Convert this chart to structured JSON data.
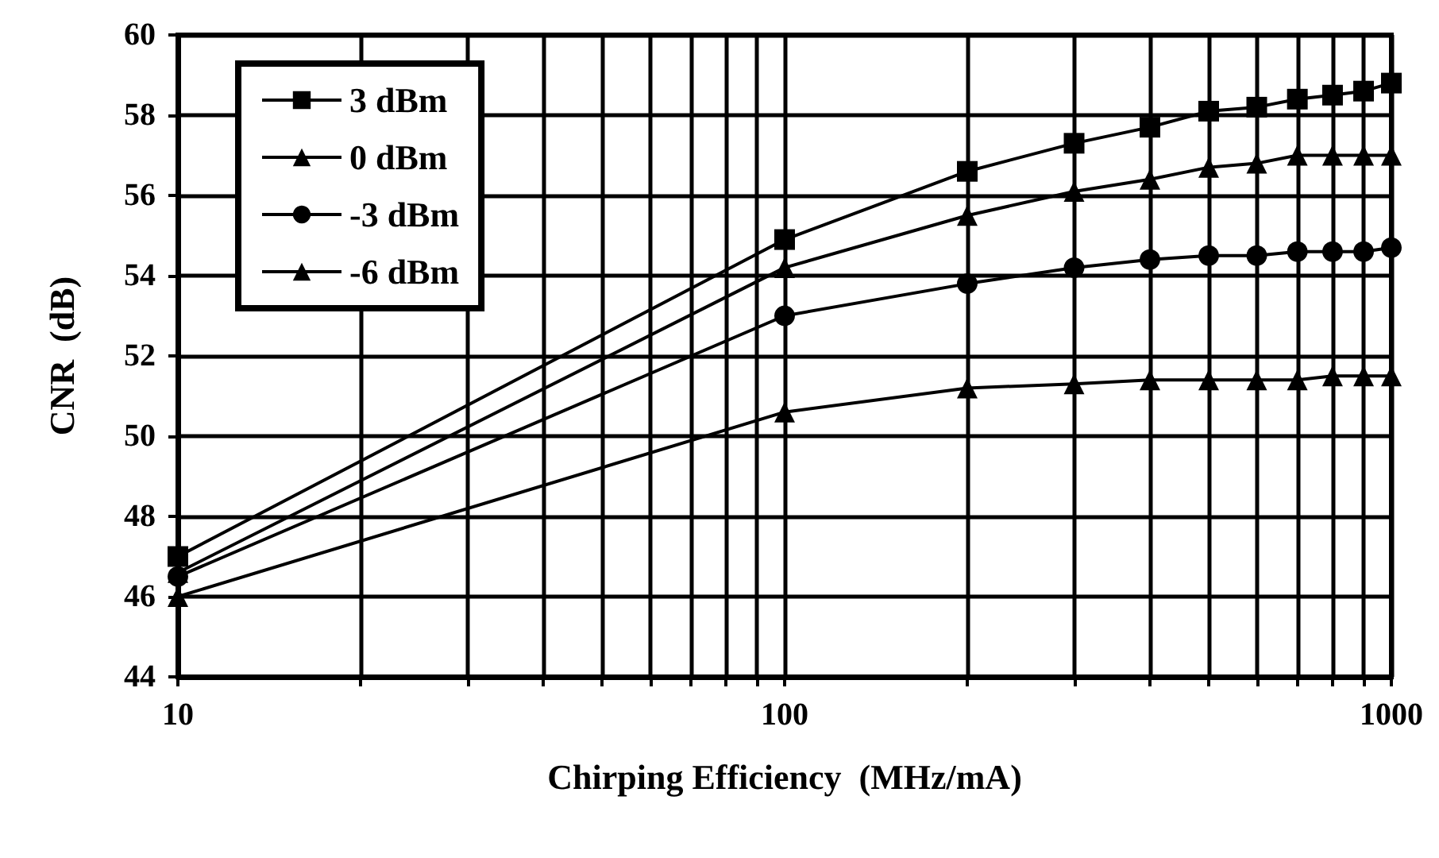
{
  "chart_data": {
    "type": "line",
    "xlabel": "Chirping Efficiency  (MHz/mA)",
    "ylabel": "CNR  (dB)",
    "x": [
      10,
      100,
      200,
      300,
      400,
      500,
      600,
      700,
      800,
      900,
      1000
    ],
    "series": [
      {
        "name": "3 dBm",
        "color": "#000000",
        "marker": "square",
        "values": [
          47.0,
          54.9,
          56.6,
          57.3,
          57.7,
          58.1,
          58.2,
          58.4,
          58.5,
          58.6,
          58.8
        ]
      },
      {
        "name": "0 dBm",
        "color": "#000000",
        "marker": "triangle",
        "values": [
          46.6,
          54.2,
          55.5,
          56.1,
          56.4,
          56.7,
          56.8,
          57.0,
          57.0,
          57.0,
          57.0
        ]
      },
      {
        "name": "-3 dBm",
        "color": "#000000",
        "marker": "circle",
        "values": [
          46.5,
          53.0,
          53.8,
          54.2,
          54.4,
          54.5,
          54.5,
          54.6,
          54.6,
          54.6,
          54.7
        ]
      },
      {
        "name": "-6 dBm",
        "color": "#000000",
        "marker": "triangle",
        "values": [
          46.0,
          50.6,
          51.2,
          51.3,
          51.4,
          51.4,
          51.4,
          51.4,
          51.5,
          51.5,
          51.5
        ]
      }
    ],
    "log": "x",
    "xlim": [
      10,
      1000
    ],
    "xticks": [
      10,
      {
        "value": 20,
        "label": null
      },
      {
        "value": 30,
        "label": null
      },
      {
        "value": 40,
        "label": null
      },
      {
        "value": 50,
        "label": null
      },
      {
        "value": 60,
        "label": null
      },
      {
        "value": 70,
        "label": null
      },
      {
        "value": 80,
        "label": null
      },
      {
        "value": 90,
        "label": null
      },
      100,
      {
        "value": 200,
        "label": null
      },
      {
        "value": 300,
        "label": null
      },
      {
        "value": 400,
        "label": null
      },
      {
        "value": 500,
        "label": null
      },
      {
        "value": 600,
        "label": null
      },
      {
        "value": 700,
        "label": null
      },
      {
        "value": 800,
        "label": null
      },
      {
        "value": 900,
        "label": null
      },
      1000
    ],
    "ylim": [
      44,
      60
    ],
    "yticks": [
      44,
      46,
      48,
      50,
      52,
      54,
      56,
      58,
      60
    ],
    "grid": true,
    "legend": "top left",
    "line_style": "solid"
  }
}
